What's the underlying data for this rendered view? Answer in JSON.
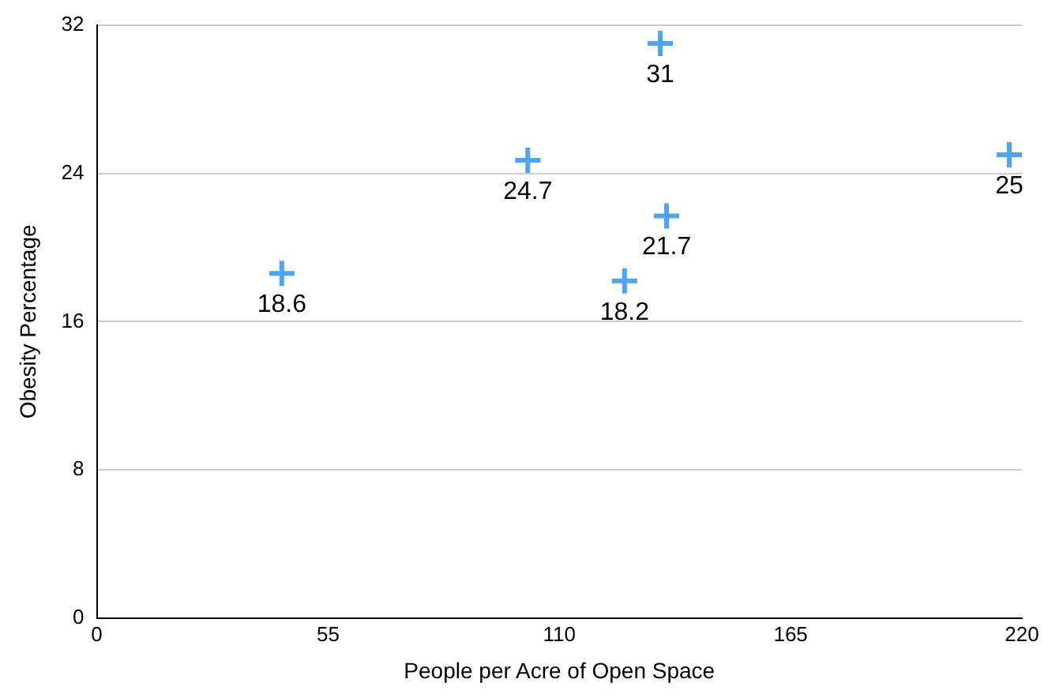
{
  "chart_data": {
    "type": "scatter",
    "xlabel": "People per Acre of Open Space",
    "ylabel": "Obesity Percentage",
    "x": [
      44,
      102.5,
      134,
      135.5,
      125.5,
      217
    ],
    "values": [
      18.6,
      24.7,
      31,
      21.7,
      18.2,
      25
    ],
    "color": "#4da3f5",
    "xlim": [
      0,
      220
    ],
    "xticks": [
      0,
      55,
      110,
      165,
      220
    ],
    "ylim": [
      0,
      32
    ],
    "yticks": [
      0,
      8,
      16,
      24,
      32
    ],
    "grid": "y",
    "legend": false,
    "marker": "cross",
    "data_labels": true
  }
}
